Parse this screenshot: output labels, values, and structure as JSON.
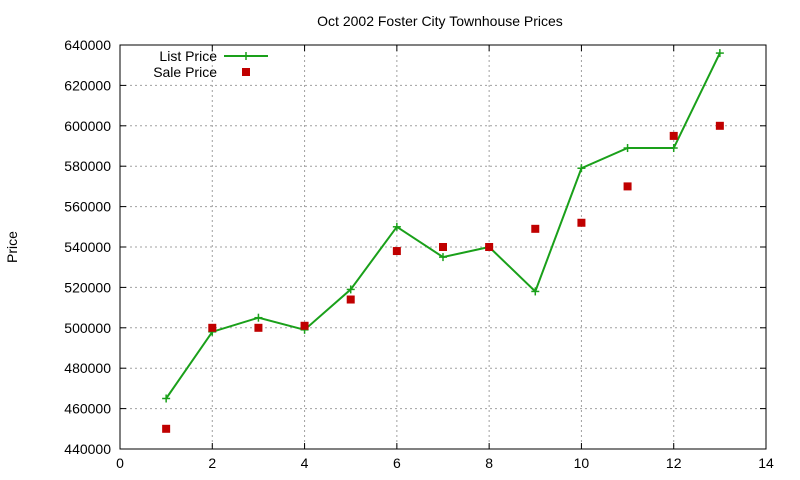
{
  "chart_data": {
    "type": "line",
    "title": "Oct 2002 Foster City Townhouse Prices",
    "xlabel": "",
    "ylabel": "Price",
    "xlim": [
      0,
      14
    ],
    "ylim": [
      440000,
      640000
    ],
    "x_ticks": [
      0,
      2,
      4,
      6,
      8,
      10,
      12,
      14
    ],
    "y_ticks": [
      440000,
      460000,
      480000,
      500000,
      520000,
      540000,
      560000,
      580000,
      600000,
      620000,
      640000
    ],
    "grid": true,
    "legend_position": "top-left",
    "series": [
      {
        "name": "List Price",
        "style": "line+plus",
        "color": "#1aa01a",
        "points": [
          [
            1,
            465000
          ],
          [
            2,
            498000
          ],
          [
            3,
            505000
          ],
          [
            4,
            499000
          ],
          [
            5,
            519000
          ],
          [
            6,
            550000
          ],
          [
            7,
            535000
          ],
          [
            8,
            540000
          ],
          [
            9,
            518000
          ],
          [
            10,
            579000
          ],
          [
            11,
            589000
          ],
          [
            12,
            589000
          ],
          [
            13,
            636000
          ]
        ]
      },
      {
        "name": "Sale Price",
        "style": "square",
        "color": "#c00000",
        "points": [
          [
            1,
            450000
          ],
          [
            2,
            500000
          ],
          [
            3,
            500000
          ],
          [
            4,
            501000
          ],
          [
            5,
            514000
          ],
          [
            6,
            538000
          ],
          [
            7,
            540000
          ],
          [
            8,
            540000
          ],
          [
            9,
            549000
          ],
          [
            10,
            552000
          ],
          [
            11,
            570000
          ],
          [
            12,
            595000
          ],
          [
            13,
            600000
          ]
        ]
      }
    ]
  }
}
